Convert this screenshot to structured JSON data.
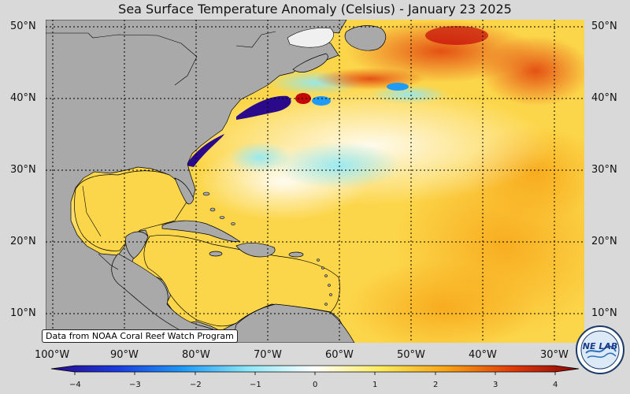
{
  "title": "Sea Surface Temperature Anomaly (Celsius) - January 23 2025",
  "credit": "Data from NOAA Coral Reef Watch Program",
  "lat_labels": [
    "50°N",
    "40°N",
    "30°N",
    "20°N",
    "10°N"
  ],
  "lon_labels": [
    "100°W",
    "90°W",
    "80°W",
    "70°W",
    "60°W",
    "50°W",
    "40°W",
    "30°W"
  ],
  "colorbar": {
    "ticks": [
      "−4",
      "−3",
      "−2",
      "−1",
      "0",
      "1",
      "2",
      "3",
      "4"
    ],
    "stops": [
      "#2a0a8a",
      "#1a3adf",
      "#1f9af5",
      "#8fe8f7",
      "#ffffff",
      "#fbeb5c",
      "#f7a315",
      "#e03a0a",
      "#8a0505"
    ]
  },
  "logo_text": "NE LAB",
  "colors": {
    "land": "#a9a9a9",
    "ocean_base": "#fcd64a",
    "background": "#d9d9d9"
  }
}
